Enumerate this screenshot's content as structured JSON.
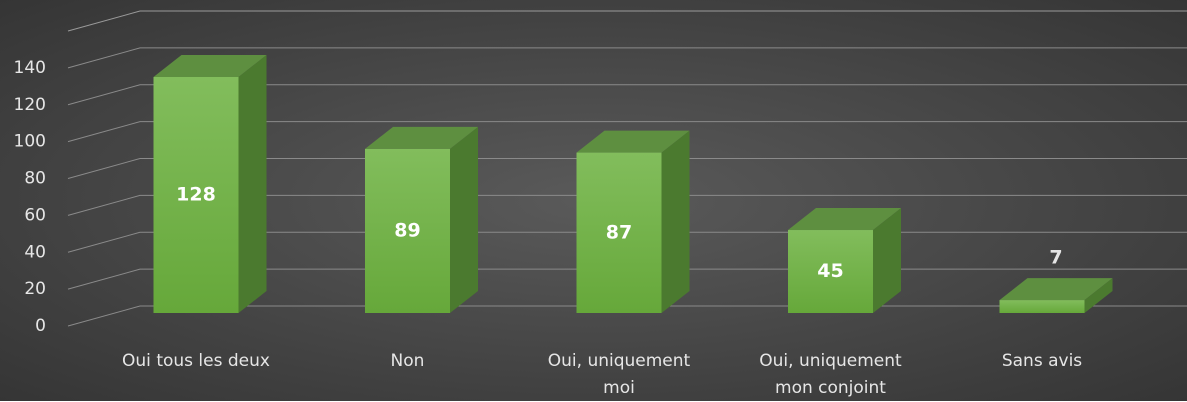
{
  "chart_data": {
    "type": "bar3d",
    "categories": [
      "Oui tous les deux",
      "Non",
      "Oui, uniquement moi",
      "Oui, uniquement mon conjoint",
      "Sans avis"
    ],
    "values": [
      128,
      89,
      87,
      45,
      7
    ],
    "color": "#72b046",
    "ylim": [
      0,
      160
    ],
    "yticks": [
      0,
      20,
      40,
      60,
      80,
      100,
      120,
      140
    ],
    "grid": true
  }
}
